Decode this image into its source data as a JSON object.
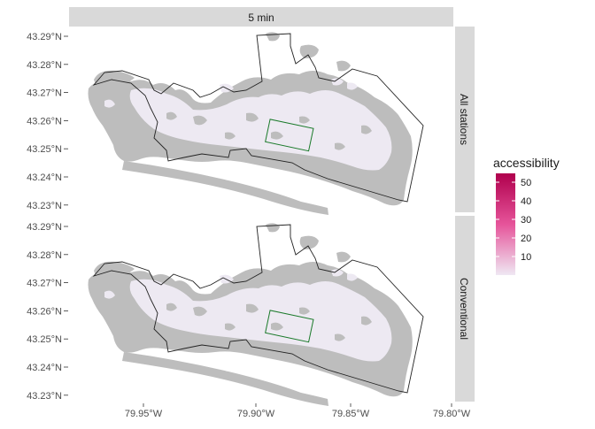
{
  "facet": {
    "column_label": "5 min",
    "row_labels": [
      "All stations",
      "Conventional"
    ]
  },
  "axes": {
    "y_ticks": [
      "43.29°N",
      "43.28°N",
      "43.27°N",
      "43.26°N",
      "43.25°N",
      "43.24°N",
      "43.23°N"
    ],
    "x_ticks": [
      "79.95°W",
      "79.90°W",
      "79.85°W",
      "79.80°W"
    ]
  },
  "legend": {
    "title": "accessibility",
    "ticks": [
      "50",
      "40",
      "30",
      "20",
      "10"
    ],
    "colors": {
      "high": "#b0004d",
      "mid": "#e6549a",
      "low": "#efe8f3"
    }
  },
  "map_colors": {
    "no_data_fill": "#bdbdbd",
    "low_access_fill": "#ede9f2",
    "boundary_stroke": "#222222",
    "study_box_stroke": "#1a7a2a",
    "strip_fill": "#d9d9d9"
  }
}
